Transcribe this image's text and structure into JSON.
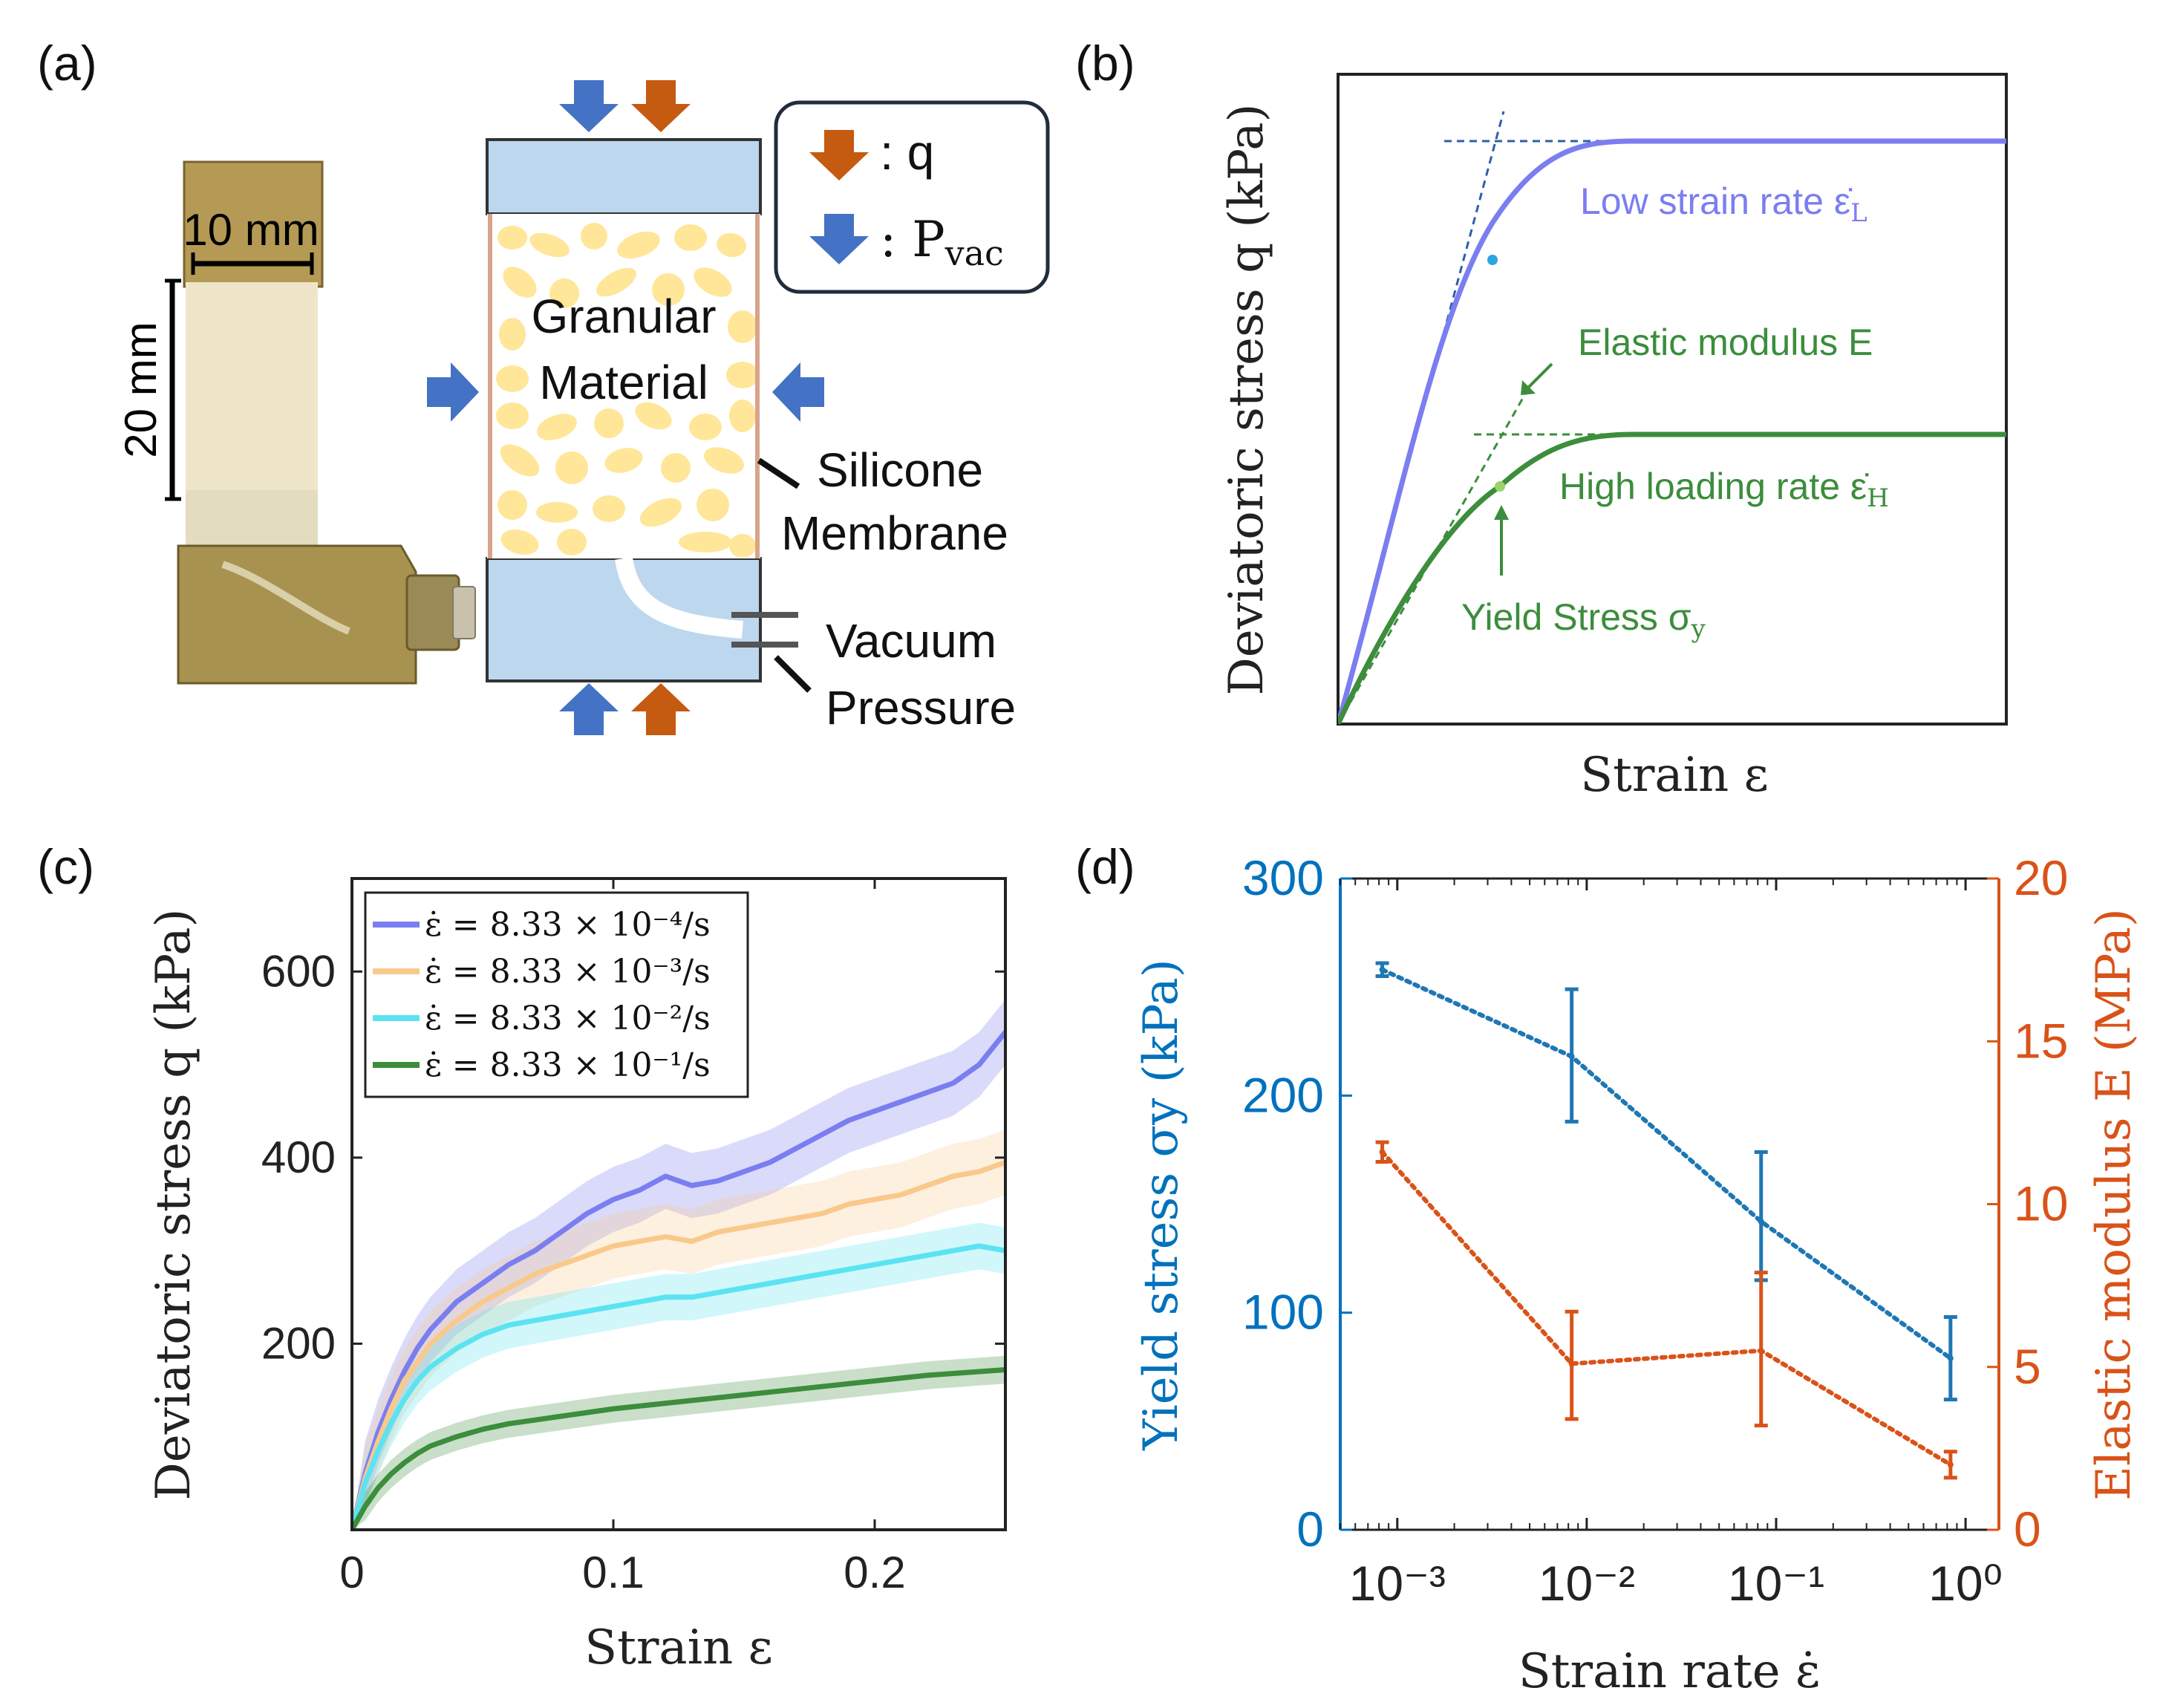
{
  "panel_a": {
    "label": "(a)",
    "scale_10mm": "10 mm",
    "scale_20mm": "20 mm",
    "granular_line1": "Granular",
    "granular_line2": "Material",
    "silicone_line1": "Silicone",
    "silicone_line2": "Membrane",
    "vacuum_line1": "Vacuum",
    "vacuum_line2": "Pressure",
    "legend_q_label": ": q",
    "legend_p_label": ": P",
    "legend_p_sub": "vac",
    "colors": {
      "q_arrow": "#c55a11",
      "p_arrow": "#4472c4",
      "chamber": "#bdd7ee",
      "grain": "#ffe699"
    }
  },
  "panel_b": {
    "label": "(b)",
    "ylabel": "Deviatoric stress q (kPa)",
    "xlabel": "Strain ε",
    "low_label_text": "Low strain rate ε̇",
    "low_label_sub": "L",
    "high_label_text": "High loading rate ε̇",
    "high_label_sub": "H",
    "elastic_label": "Elastic modulus E",
    "yield_label": "Yield Stress σ",
    "yield_sub": "y",
    "colors": {
      "low": "#7b7ef0",
      "high": "#3c8d3c",
      "guide": "#2f5fa8"
    }
  },
  "chart_data": [
    {
      "panel": "(c)",
      "type": "line",
      "title": "",
      "xlabel": "Strain ε",
      "ylabel": "Deviatoric stress q (kPa)",
      "xlim": [
        0,
        0.25
      ],
      "ylim": [
        0,
        700
      ],
      "xticks": [
        0,
        0.1,
        0.2
      ],
      "xtick_labels": [
        "0",
        "0.1",
        "0.2"
      ],
      "yticks": [
        200,
        400,
        600
      ],
      "ytick_labels": [
        "200",
        "400",
        "600"
      ],
      "legend_position": "top-left",
      "x": [
        0,
        0.005,
        0.01,
        0.015,
        0.02,
        0.025,
        0.03,
        0.04,
        0.05,
        0.06,
        0.07,
        0.08,
        0.09,
        0.1,
        0.11,
        0.12,
        0.13,
        0.14,
        0.15,
        0.16,
        0.17,
        0.18,
        0.19,
        0.2,
        0.21,
        0.22,
        0.23,
        0.24,
        0.25
      ],
      "series": [
        {
          "name": "ε̇ = 8.33 × 10⁻⁴/s",
          "color": "#7b7ef0",
          "values": [
            0,
            60,
            105,
            140,
            170,
            195,
            215,
            245,
            265,
            285,
            300,
            320,
            340,
            355,
            365,
            380,
            370,
            375,
            385,
            395,
            410,
            425,
            440,
            450,
            460,
            470,
            480,
            500,
            535
          ],
          "band": 35
        },
        {
          "name": "ε̇ = 8.33 × 10⁻³/s",
          "color": "#f9c98b",
          "values": [
            0,
            55,
            95,
            130,
            160,
            180,
            200,
            225,
            245,
            260,
            275,
            285,
            295,
            305,
            310,
            315,
            310,
            320,
            325,
            330,
            335,
            340,
            350,
            355,
            360,
            370,
            380,
            385,
            395
          ],
          "band": 35
        },
        {
          "name": "ε̇ = 8.33 × 10⁻²/s",
          "color": "#5be3f2",
          "values": [
            0,
            50,
            85,
            115,
            140,
            160,
            175,
            195,
            210,
            220,
            225,
            230,
            235,
            240,
            245,
            250,
            250,
            255,
            260,
            265,
            270,
            275,
            280,
            285,
            290,
            295,
            300,
            305,
            300
          ],
          "band": 25
        },
        {
          "name": "ε̇ = 8.33 × 10⁻¹/s",
          "color": "#3c8d3c",
          "values": [
            0,
            25,
            45,
            60,
            72,
            82,
            90,
            100,
            108,
            114,
            118,
            122,
            126,
            130,
            133,
            136,
            139,
            142,
            145,
            148,
            151,
            154,
            157,
            160,
            163,
            166,
            168,
            170,
            172
          ],
          "band": 15
        }
      ]
    },
    {
      "panel": "(d)",
      "type": "line",
      "xscale": "log",
      "xlabel": "Strain rate ε̇",
      "ylabel_left": "Yield stress σy (kPa)",
      "ylabel_right": "Elastic modulus E (MPa)",
      "xlim": [
        0.0005,
        1.5
      ],
      "xticks": [
        0.001,
        0.01,
        0.1,
        1
      ],
      "xtick_labels": [
        "10⁻³",
        "10⁻²",
        "10⁻¹",
        "10⁰"
      ],
      "ylim_left": [
        0,
        300
      ],
      "yticks_left": [
        "0",
        "100",
        "200",
        "300"
      ],
      "ylim_right": [
        0,
        20
      ],
      "yticks_right": [
        "0",
        "5",
        "10",
        "15",
        "20"
      ],
      "x": [
        0.000833,
        0.00833,
        0.0833,
        0.833
      ],
      "series": [
        {
          "name": "Yield stress",
          "axis": "left",
          "color": "#1f77b4",
          "values": [
            258,
            218,
            142,
            79
          ],
          "err_low": [
            255,
            188,
            115,
            60
          ],
          "err_high": [
            261,
            249,
            174,
            98
          ]
        },
        {
          "name": "Elastic modulus",
          "axis": "right",
          "color": "#d95319",
          "values": [
            11.6,
            5.1,
            5.5,
            2.0
          ],
          "err_low": [
            11.3,
            3.4,
            3.2,
            1.6
          ],
          "err_high": [
            11.9,
            6.7,
            7.9,
            2.4
          ]
        }
      ],
      "colors": {
        "left_axis": "#0072bd",
        "right_axis": "#d95319"
      }
    }
  ]
}
